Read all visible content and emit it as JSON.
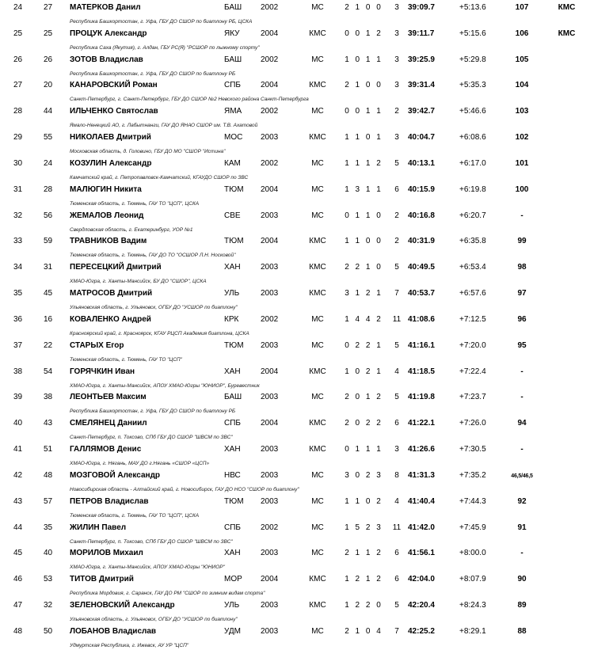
{
  "table": {
    "rows": [
      {
        "place": "24",
        "bib": "27",
        "name": "МАТЕРКОВ Данил",
        "club": "Республика Башкортостан, г. Уфа, ГБУ ДО СШОР по биатлону РБ, ЦСКА",
        "region": "БАШ",
        "year": "2002",
        "rank": "МС",
        "shooting": "2 1 0 0",
        "misses": "3",
        "time": "39:09.7",
        "gap": "+5:13.6",
        "points": "107",
        "rank_earned": "КМС"
      },
      {
        "place": "25",
        "bib": "25",
        "name": "ПРОЦУК Александр",
        "club": "Республика Саха (Якутия), г. Алдан, ГБУ РС(Я) \"РСШОР по лыжному спорту\"",
        "region": "ЯКУ",
        "year": "2004",
        "rank": "КМС",
        "shooting": "0 0 1 2",
        "misses": "3",
        "time": "39:11.7",
        "gap": "+5:15.6",
        "points": "106",
        "rank_earned": "КМС"
      },
      {
        "place": "26",
        "bib": "26",
        "name": "ЗОТОВ Владислав",
        "club": "Республика Башкортостан, г. Уфа, ГБУ ДО СШОР по биатлону РБ",
        "region": "БАШ",
        "year": "2002",
        "rank": "МС",
        "shooting": "1 0 1 1",
        "misses": "3",
        "time": "39:25.9",
        "gap": "+5:29.8",
        "points": "105",
        "rank_earned": ""
      },
      {
        "place": "27",
        "bib": "20",
        "name": "КАНАРОВСКИЙ Роман",
        "club": "Санкт-Петербург, г. Санкт-Петербург, ГБУ ДО СШОР №2 Невского района Санкт-Петербурга",
        "region": "СПБ",
        "year": "2004",
        "rank": "КМС",
        "shooting": "2 1 0 0",
        "misses": "3",
        "time": "39:31.4",
        "gap": "+5:35.3",
        "points": "104",
        "rank_earned": ""
      },
      {
        "place": "28",
        "bib": "44",
        "name": "ИЛЬЧЕНКО Святослав",
        "club": "Ямало-Ненецкий АО, г. Лабытнанги, ГАУ ДО ЯНАО СШОР им. Т.В. Ахатовой",
        "region": "ЯМА",
        "year": "2002",
        "rank": "МС",
        "shooting": "0 0 1 1",
        "misses": "2",
        "time": "39:42.7",
        "gap": "+5:46.6",
        "points": "103",
        "rank_earned": ""
      },
      {
        "place": "29",
        "bib": "55",
        "name": "НИКОЛАЕВ Дмитрий",
        "club": "Московская область, д. Головино, ГБУ ДО МО \"СШОР \"Истина\"",
        "region": "МОС",
        "year": "2003",
        "rank": "КМС",
        "shooting": "1 1 0 1",
        "misses": "3",
        "time": "40:04.7",
        "gap": "+6:08.6",
        "points": "102",
        "rank_earned": ""
      },
      {
        "place": "30",
        "bib": "24",
        "name": "КОЗУЛИН Александр",
        "club": "Камчатский край, г. Петропавловск-Камчатский, КГАУДО СШОР по ЗВС",
        "region": "КАМ",
        "year": "2002",
        "rank": "МС",
        "shooting": "1 1 1 2",
        "misses": "5",
        "time": "40:13.1",
        "gap": "+6:17.0",
        "points": "101",
        "rank_earned": ""
      },
      {
        "place": "31",
        "bib": "28",
        "name": "МАЛЮГИН Никита",
        "club": "Тюменская область, г. Тюмень, ГАУ ТО \"ЦСП\", ЦСКА",
        "region": "ТЮМ",
        "year": "2004",
        "rank": "МС",
        "shooting": "1 3 1 1",
        "misses": "6",
        "time": "40:15.9",
        "gap": "+6:19.8",
        "points": "100",
        "rank_earned": ""
      },
      {
        "place": "32",
        "bib": "56",
        "name": "ЖЕМАЛОВ Леонид",
        "club": "Свердловская область, г. Екатеринбург, УОР №1",
        "region": "СВЕ",
        "year": "2003",
        "rank": "МС",
        "shooting": "0 1 1 0",
        "misses": "2",
        "time": "40:16.8",
        "gap": "+6:20.7",
        "points": "-",
        "rank_earned": ""
      },
      {
        "place": "33",
        "bib": "59",
        "name": "ТРАВНИКОВ Вадим",
        "club": "Тюменская область, г. Тюмень, ГАУ ДО ТО \"ОСШОР Л.Н. Носковой\"",
        "region": "ТЮМ",
        "year": "2004",
        "rank": "КМС",
        "shooting": "1 1 0 0",
        "misses": "2",
        "time": "40:31.9",
        "gap": "+6:35.8",
        "points": "99",
        "rank_earned": ""
      },
      {
        "place": "34",
        "bib": "31",
        "name": "ПЕРЕСЕЦКИЙ Дмитрий",
        "club": "ХМАО-Югра, г. Ханты-Мансийск, БУ ДО \"СШОР\", ЦСКА",
        "region": "ХАН",
        "year": "2003",
        "rank": "КМС",
        "shooting": "2 2 1 0",
        "misses": "5",
        "time": "40:49.5",
        "gap": "+6:53.4",
        "points": "98",
        "rank_earned": ""
      },
      {
        "place": "35",
        "bib": "45",
        "name": "МАТРОСОВ Дмитрий",
        "club": "Ульяновская область, г. Ульяновск, ОГБУ ДО \"УСШОР по биатлону\"",
        "region": "УЛЬ",
        "year": "2003",
        "rank": "КМС",
        "shooting": "3 1 2 1",
        "misses": "7",
        "time": "40:53.7",
        "gap": "+6:57.6",
        "points": "97",
        "rank_earned": ""
      },
      {
        "place": "36",
        "bib": "16",
        "name": "КОВАЛЕНКО Андрей",
        "club": "Красноярский край, г. Красноярск, КГАУ РЦСП Академия биатлона, ЦСКА",
        "region": "КРК",
        "year": "2002",
        "rank": "МС",
        "shooting": "1 4 4 2",
        "misses": "11",
        "time": "41:08.6",
        "gap": "+7:12.5",
        "points": "96",
        "rank_earned": ""
      },
      {
        "place": "37",
        "bib": "22",
        "name": "СТАРЫХ Егор",
        "club": "Тюменская область, г. Тюмень, ГАУ ТО \"ЦСП\"",
        "region": "ТЮМ",
        "year": "2003",
        "rank": "МС",
        "shooting": "0 2 2 1",
        "misses": "5",
        "time": "41:16.1",
        "gap": "+7:20.0",
        "points": "95",
        "rank_earned": ""
      },
      {
        "place": "38",
        "bib": "54",
        "name": "ГОРЯЧКИН Иван",
        "club": "ХМАО-Югра, г. Ханты-Мансийск, АПОУ ХМАО-Югры \"ЮНИОР\", Буревестник",
        "region": "ХАН",
        "year": "2004",
        "rank": "КМС",
        "shooting": "1 0 2 1",
        "misses": "4",
        "time": "41:18.5",
        "gap": "+7:22.4",
        "points": "-",
        "rank_earned": ""
      },
      {
        "place": "39",
        "bib": "38",
        "name": "ЛЕОНТЬЕВ Максим",
        "club": "Республика Башкортостан, г. Уфа, ГБУ ДО СШОР по биатлону РБ",
        "region": "БАШ",
        "year": "2003",
        "rank": "МС",
        "shooting": "2 0 1 2",
        "misses": "5",
        "time": "41:19.8",
        "gap": "+7:23.7",
        "points": "-",
        "rank_earned": ""
      },
      {
        "place": "40",
        "bib": "43",
        "name": "СМЕЛЯНЕЦ Даниил",
        "club": "Санкт-Петербург, п. Токсово, СПб ГБУ ДО СШОР \"ШВСМ по ЗВС\"",
        "region": "СПБ",
        "year": "2004",
        "rank": "КМС",
        "shooting": "2 0 2 2",
        "misses": "6",
        "time": "41:22.1",
        "gap": "+7:26.0",
        "points": "94",
        "rank_earned": ""
      },
      {
        "place": "41",
        "bib": "51",
        "name": "ГАЛЛЯМОВ Денис",
        "club": "ХМАО-Югра, г. Нягань, МАУ ДО г.Нягань «СШОР «ЦСП»",
        "region": "ХАН",
        "year": "2003",
        "rank": "КМС",
        "shooting": "0 1 1 1",
        "misses": "3",
        "time": "41:26.6",
        "gap": "+7:30.5",
        "points": "-",
        "rank_earned": ""
      },
      {
        "place": "42",
        "bib": "48",
        "name": "МОЗГОВОЙ Александр",
        "club": "Новосибирская область - Алтайский край, г. Новосибирск, ГАУ ДО НСО \"СШОР по биатлону\"",
        "region": "НВС",
        "year": "2003",
        "rank": "МС",
        "shooting": "3 0 2 3",
        "misses": "8",
        "time": "41:31.3",
        "gap": "+7:35.2",
        "points": "46,5/46,5",
        "rank_earned": ""
      },
      {
        "place": "43",
        "bib": "57",
        "name": "ПЕТРОВ Владислав",
        "club": "Тюменская область, г. Тюмень, ГАУ ТО \"ЦСП\", ЦСКА",
        "region": "ТЮМ",
        "year": "2003",
        "rank": "МС",
        "shooting": "1 1 0 2",
        "misses": "4",
        "time": "41:40.4",
        "gap": "+7:44.3",
        "points": "92",
        "rank_earned": ""
      },
      {
        "place": "44",
        "bib": "35",
        "name": "ЖИЛИН Павел",
        "club": "Санкт-Петербург, п. Токсово, СПб ГБУ ДО СШОР \"ШВСМ по ЗВС\"",
        "region": "СПБ",
        "year": "2002",
        "rank": "МС",
        "shooting": "1 5 2 3",
        "misses": "11",
        "time": "41:42.0",
        "gap": "+7:45.9",
        "points": "91",
        "rank_earned": ""
      },
      {
        "place": "45",
        "bib": "40",
        "name": "МОРИЛОВ Михаил",
        "club": "ХМАО-Югра, г. Ханты-Мансийск, АПОУ ХМАО-Югры \"ЮНИОР\"",
        "region": "ХАН",
        "year": "2003",
        "rank": "МС",
        "shooting": "2 1 1 2",
        "misses": "6",
        "time": "41:56.1",
        "gap": "+8:00.0",
        "points": "-",
        "rank_earned": ""
      },
      {
        "place": "46",
        "bib": "53",
        "name": "ТИТОВ Дмитрий",
        "club": "Республика Мордовия, г. Саранск, ГАУ ДО РМ \"СШОР по зимним видам спорта\"",
        "region": "МОР",
        "year": "2004",
        "rank": "КМС",
        "shooting": "1 2 1 2",
        "misses": "6",
        "time": "42:04.0",
        "gap": "+8:07.9",
        "points": "90",
        "rank_earned": ""
      },
      {
        "place": "47",
        "bib": "32",
        "name": "ЗЕЛЕНОВСКИЙ Александр",
        "club": "Ульяновская область, г. Ульяновск, ОГБУ ДО \"УСШОР по биатлону\"",
        "region": "УЛЬ",
        "year": "2003",
        "rank": "КМС",
        "shooting": "1 2 2 0",
        "misses": "5",
        "time": "42:20.4",
        "gap": "+8:24.3",
        "points": "89",
        "rank_earned": ""
      },
      {
        "place": "48",
        "bib": "50",
        "name": "ЛОБАНОВ Владислав",
        "club": "Удмуртская Республика, г. Ижевск, АУ УР \"ЦСП\"",
        "region": "УДМ",
        "year": "2003",
        "rank": "МС",
        "shooting": "2 1 0 4",
        "misses": "7",
        "time": "42:25.2",
        "gap": "+8:29.1",
        "points": "88",
        "rank_earned": ""
      }
    ]
  }
}
